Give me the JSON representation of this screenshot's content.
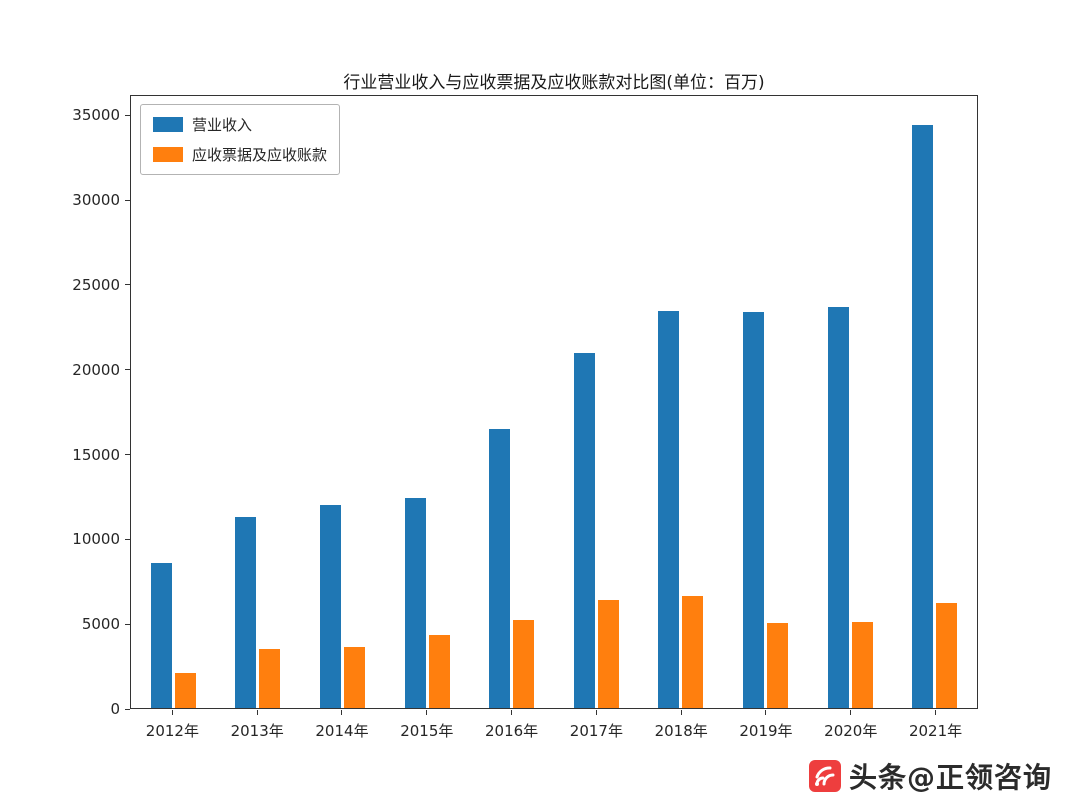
{
  "chart_data": {
    "type": "bar",
    "title": "行业营业收入与应收票据及应收账款对比图(单位：百万)",
    "categories": [
      "2012年",
      "2013年",
      "2014年",
      "2015年",
      "2016年",
      "2017年",
      "2018年",
      "2019年",
      "2020年",
      "2021年"
    ],
    "series": [
      {
        "name": "营业收入",
        "color": "#1f77b4",
        "values": [
          8600,
          11300,
          12000,
          12400,
          16500,
          21000,
          23500,
          23400,
          23700,
          34500
        ]
      },
      {
        "name": "应收票据及应收账款",
        "color": "#ff7f0e",
        "values": [
          2100,
          3500,
          3600,
          4300,
          5200,
          6400,
          6600,
          5000,
          5100,
          6200
        ]
      }
    ],
    "xlabel": "",
    "ylabel": "",
    "ylim": [
      0,
      36200
    ],
    "yticks": [
      0,
      5000,
      10000,
      15000,
      20000,
      25000,
      30000,
      35000
    ],
    "legend_position": "upper-left",
    "grid": false
  },
  "watermark": {
    "text": "头条@正领咨询",
    "icon_color": "#ee3e3e"
  }
}
